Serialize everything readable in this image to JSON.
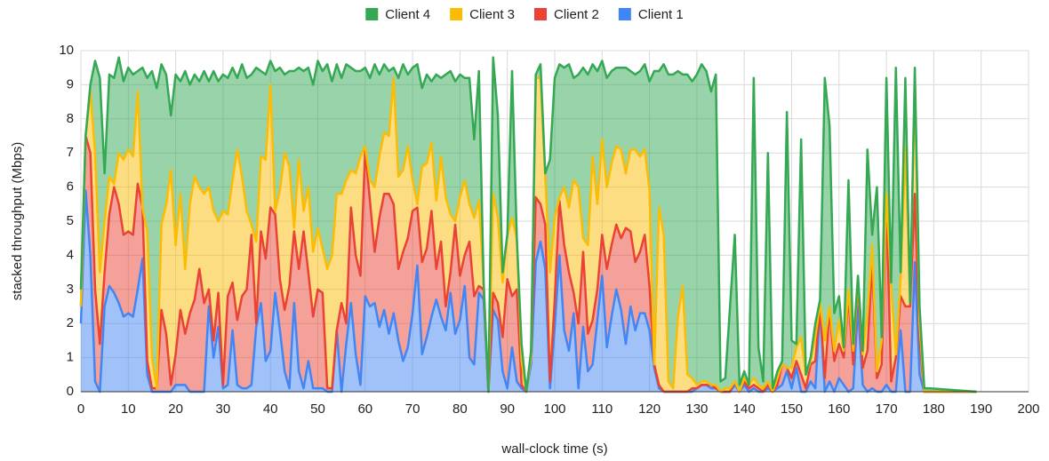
{
  "chart_data": {
    "type": "stacked_area",
    "xlabel": "wall-clock time (s)",
    "ylabel": "stacked throughput (Mbps)",
    "xlim": [
      0,
      200
    ],
    "ylim": [
      0,
      10
    ],
    "xticks": [
      0,
      10,
      20,
      30,
      40,
      50,
      60,
      70,
      80,
      90,
      100,
      110,
      120,
      130,
      140,
      150,
      160,
      170,
      180,
      190,
      200
    ],
    "yticks": [
      0,
      1,
      2,
      3,
      4,
      5,
      6,
      7,
      8,
      9,
      10
    ],
    "grid": true,
    "legend": "top",
    "x": [
      0,
      1,
      2,
      3,
      4,
      5,
      6,
      7,
      8,
      9,
      10,
      11,
      12,
      13,
      14,
      15,
      16,
      17,
      18,
      19,
      20,
      21,
      22,
      23,
      24,
      25,
      26,
      27,
      28,
      29,
      30,
      31,
      32,
      33,
      34,
      35,
      36,
      37,
      38,
      39,
      40,
      41,
      42,
      43,
      44,
      45,
      46,
      47,
      48,
      49,
      50,
      51,
      52,
      53,
      54,
      55,
      56,
      57,
      58,
      59,
      60,
      61,
      62,
      63,
      64,
      65,
      66,
      67,
      68,
      69,
      70,
      71,
      72,
      73,
      74,
      75,
      76,
      77,
      78,
      79,
      80,
      81,
      82,
      83,
      84,
      85,
      86,
      87,
      88,
      89,
      90,
      91,
      92,
      93,
      94,
      95,
      96,
      97,
      98,
      99,
      100,
      101,
      102,
      103,
      104,
      105,
      106,
      107,
      108,
      109,
      110,
      111,
      112,
      113,
      114,
      115,
      116,
      117,
      118,
      119,
      120,
      121,
      122,
      123,
      124,
      125,
      126,
      127,
      128,
      129,
      130,
      131,
      132,
      133,
      134,
      135,
      136,
      137,
      138,
      139,
      140,
      141,
      142,
      143,
      144,
      145,
      146,
      147,
      148,
      149,
      150,
      151,
      152,
      153,
      154,
      155,
      156,
      157,
      158,
      159,
      160,
      161,
      162,
      163,
      164,
      165,
      166,
      167,
      168,
      169,
      170,
      171,
      172,
      173,
      174,
      175,
      176,
      177,
      178,
      179,
      189
    ],
    "series": [
      {
        "name": "Client 1",
        "color": "#4285f4",
        "values": [
          2,
          5.9,
          4,
          0.3,
          0,
          2.5,
          3.1,
          2.9,
          2.6,
          2.2,
          2.3,
          2.2,
          3,
          3.9,
          0.5,
          0,
          0,
          0,
          0,
          0,
          0.2,
          0.2,
          0.2,
          0,
          0,
          0,
          0,
          2.5,
          1,
          1.9,
          0.1,
          0.2,
          1.8,
          0.2,
          0.1,
          0.1,
          0.2,
          1.9,
          2.6,
          0.9,
          1.2,
          2.9,
          1.8,
          0.6,
          0.1,
          2.6,
          0.6,
          0.1,
          0.9,
          0.1,
          0.1,
          0.1,
          0,
          0,
          1.8,
          0,
          1.4,
          2.6,
          1.1,
          0.2,
          2.8,
          2.5,
          2.6,
          1.9,
          2.4,
          1.7,
          2.3,
          1.5,
          0.9,
          1.3,
          2.3,
          3.7,
          1.1,
          1.6,
          2.2,
          2.7,
          2.2,
          1.8,
          2.9,
          1.7,
          2.1,
          3.1,
          1,
          0.8,
          2.9,
          2.7,
          0,
          2.4,
          2.1,
          0.6,
          0.1,
          1.3,
          0.3,
          0.1,
          0,
          0.8,
          3.8,
          4.4,
          3.6,
          0.1,
          1.9,
          4,
          1.8,
          1.2,
          2.3,
          0.1,
          1.9,
          0.6,
          0.8,
          2.1,
          3.4,
          1.3,
          2.2,
          3,
          2.4,
          1.4,
          2.5,
          1.8,
          2.3,
          2.3,
          1.8,
          0.7,
          0.1,
          0,
          0,
          0,
          0,
          0,
          0,
          0,
          0.1,
          0.2,
          0.2,
          0.1,
          0.1,
          0,
          0,
          0,
          0.2,
          0,
          0.2,
          0,
          0.1,
          0,
          0,
          0.1,
          0,
          0.1,
          0.2,
          0.6,
          0.1,
          0.7,
          0,
          0,
          0.3,
          0.1,
          2.5,
          0,
          0.3,
          0,
          0.4,
          0.2,
          0,
          0.1,
          2.5,
          0.2,
          0,
          0.1,
          0,
          0,
          0.2,
          0,
          0,
          1.8,
          0,
          0,
          3.8,
          0.5,
          0,
          0,
          0
        ]
      },
      {
        "name": "Client 2",
        "color": "#ea4335",
        "values": [
          0.5,
          1.6,
          3,
          2.7,
          1.4,
          1,
          2.1,
          3.1,
          2.9,
          2.4,
          2.4,
          2.4,
          3.1,
          1.5,
          0.4,
          0.1,
          0.1,
          2.4,
          1.7,
          0.2,
          0.9,
          2.2,
          1.5,
          2.3,
          2.7,
          3.6,
          2.6,
          0.5,
          0.5,
          1,
          0.1,
          2.6,
          1.4,
          1.9,
          2.7,
          2.9,
          4.4,
          0.1,
          2.1,
          3,
          4.2,
          2.3,
          1.5,
          1.8,
          3,
          2.1,
          3,
          4.6,
          2.6,
          2.1,
          2.9,
          2.8,
          0.1,
          0.1,
          0,
          2.6,
          0.6,
          2.8,
          2.9,
          3.2,
          4.3,
          3.1,
          1.5,
          3.2,
          3.4,
          4.1,
          3.2,
          2.1,
          3.2,
          3.2,
          3,
          1.7,
          2.7,
          2.6,
          3.1,
          0.9,
          2.2,
          0.7,
          0.6,
          3.2,
          1.3,
          0.9,
          3.4,
          2,
          0.2,
          0.3,
          0,
          0.5,
          0.5,
          1,
          3.2,
          1.5,
          2.7,
          0.1,
          0,
          0.2,
          1.9,
          1.1,
          1.3,
          0.2,
          0.8,
          1.6,
          2.5,
          2.3,
          0.6,
          1.9,
          2.2,
          1.1,
          1.3,
          0.9,
          1.2,
          2.3,
          2.1,
          1.9,
          2.1,
          3.4,
          2.2,
          2,
          1.8,
          2.3,
          1.3,
          0.1,
          0.1,
          0,
          0,
          0,
          0,
          0,
          0,
          0.1,
          0,
          0,
          0,
          0.1,
          0,
          0,
          0,
          0,
          0.1,
          0,
          0.1,
          0.1,
          0.1,
          0.1,
          0,
          0.1,
          0,
          0.1,
          0.6,
          0.1,
          0.3,
          0.2,
          0.5,
          0.1,
          0.5,
          0.8,
          0,
          0.4,
          2.1,
          0.9,
          1,
          0.8,
          2.8,
          0.7,
          0.7,
          0.5,
          1.2,
          3.7,
          0.4,
          0.8,
          5.4,
          0.3,
          1,
          1,
          2.5,
          2.5,
          2,
          1,
          0,
          0,
          0
        ]
      },
      {
        "name": "Client 3",
        "color": "#fbbc04",
        "values": [
          0,
          0,
          1.8,
          4,
          2.1,
          1.5,
          1.1,
          0.1,
          1.5,
          2.2,
          2.4,
          2.3,
          2.7,
          0,
          3.8,
          0.9,
          0,
          2.5,
          3.8,
          6.3,
          3.2,
          3.4,
          1.9,
          3.2,
          3.6,
          2.4,
          3.2,
          3,
          3.8,
          2.1,
          5.1,
          2.4,
          3,
          5,
          3.5,
          2.3,
          0.3,
          2.4,
          2.2,
          2.9,
          3.6,
          0.1,
          2.6,
          4.6,
          3.5,
          0.1,
          3.2,
          0.6,
          2.5,
          1.9,
          1.8,
          1.3,
          3.5,
          3.9,
          4,
          3.2,
          4.2,
          1.1,
          2.4,
          3.5,
          0.1,
          0.6,
          1.9,
          1.8,
          1.8,
          1.7,
          3.7,
          2.7,
          2.4,
          2.7,
          0.9,
          0.1,
          2.8,
          2.5,
          2,
          2,
          2.5,
          3.2,
          1.7,
          0.1,
          2.3,
          2.2,
          1.1,
          2.3,
          2.5,
          0.2,
          0,
          2.9,
          2.5,
          1.6,
          1.3,
          2.3,
          1.5,
          0.7,
          0,
          0,
          3.5,
          3.7,
          1.4,
          3.2,
          2.4,
          0.1,
          1.7,
          1.9,
          3.3,
          4,
          0.4,
          2.6,
          4.8,
          2.5,
          2.8,
          2.4,
          2.4,
          2.3,
          2.6,
          1.6,
          2.4,
          3.3,
          2.8,
          2.5,
          2.8,
          0,
          5.2,
          4.6,
          0.3,
          0.1,
          2.2,
          3.1,
          0.5,
          0.3,
          0.1,
          0.1,
          0.1,
          0,
          0.1,
          0,
          0.1,
          0.1,
          0,
          0,
          0.1,
          0.1,
          0.2,
          0.1,
          0.1,
          0.1,
          0,
          0.2,
          0,
          0,
          0.3,
          0.4,
          1.1,
          0.4,
          0.1,
          0.7,
          0.1,
          1.1,
          0.1,
          0.3,
          0.7,
          0.2,
          0.2,
          0.4,
          0.1,
          0.4,
          1.1,
          0.5,
          0.2,
          0.7,
          0.2,
          2.8,
          0.1,
          0.5,
          4.7,
          0.1,
          3.4,
          0.5,
          0,
          0,
          0
        ]
      },
      {
        "name": "Client 4",
        "color": "#34a853",
        "values": [
          0.5,
          0,
          0.2,
          2.7,
          5.7,
          1.4,
          3,
          3.1,
          2.8,
          2.3,
          2.4,
          2.4,
          0.6,
          4.1,
          4.5,
          8.4,
          8.8,
          4.7,
          3.8,
          1.6,
          5,
          3.3,
          5.8,
          3.5,
          3,
          3.1,
          3.6,
          3.1,
          4.1,
          4.1,
          4,
          4,
          3.3,
          2.1,
          3.3,
          3.9,
          4.4,
          5.1,
          2.5,
          2.5,
          0.7,
          4.1,
          3.6,
          2.3,
          2.8,
          4.6,
          2.7,
          4.1,
          3.5,
          4.9,
          4.9,
          5.2,
          6,
          5.1,
          3.8,
          3.4,
          3.4,
          3,
          3,
          2.5,
          2.3,
          3,
          3.6,
          2.4,
          2,
          1.9,
          0.3,
          2.9,
          3.1,
          2.1,
          3.3,
          4.1,
          2.3,
          2.6,
          1.8,
          3.7,
          2.3,
          3.6,
          4.2,
          4.1,
          3.6,
          3,
          3.7,
          2.3,
          3.8,
          0,
          0,
          4,
          3,
          0.3,
          0,
          4.3,
          0,
          0.5,
          0,
          0.2,
          0.1,
          0.4,
          0.1,
          3.3,
          4.1,
          3.9,
          3.5,
          4.2,
          3,
          3.3,
          5,
          5,
          2.7,
          3.9,
          2.3,
          3.2,
          2.7,
          2.3,
          2.4,
          3.1,
          2.3,
          2.2,
          2.5,
          2.5,
          3.2,
          8.6,
          4,
          5,
          9,
          9.2,
          7.2,
          6.2,
          8.8,
          8.7,
          9.1,
          9.3,
          9.1,
          8.6,
          9.1,
          0.3,
          0.3,
          2.4,
          4.3,
          0.2,
          0.2,
          0,
          8.8,
          1.1,
          0.2,
          6.7,
          0.1,
          0.2,
          0.1,
          7.5,
          0.8,
          0.1,
          5.8,
          0,
          0.1,
          0.4,
          0.1,
          7.7,
          5.3,
          1.1,
          0.7,
          0.1,
          3.2,
          0.2,
          0.1,
          0.1,
          4.8,
          0.3,
          5.4,
          0.1,
          3.4,
          0.1,
          8.4,
          0.2,
          2,
          0,
          0.3,
          0.5,
          0.1,
          0.1,
          0
        ]
      }
    ]
  }
}
